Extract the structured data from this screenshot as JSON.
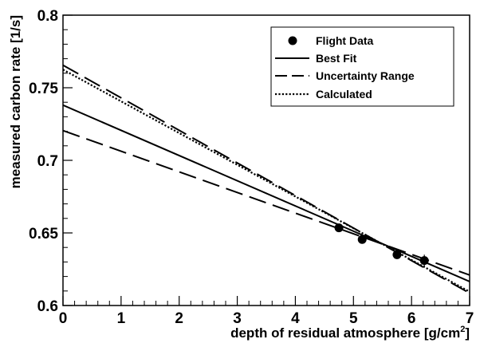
{
  "chart_data": {
    "type": "scatter",
    "xlabel": "depth of residual atmosphere [g/cm",
    "xlabel_sup": "2",
    "xlabel_end": "]",
    "ylabel": "measured carbon rate [1/s]",
    "xlim": [
      0,
      7
    ],
    "ylim": [
      0.6,
      0.8
    ],
    "x_ticks": [
      0,
      1,
      2,
      3,
      4,
      5,
      6,
      7
    ],
    "x_tick_labels": [
      "0",
      "1",
      "2",
      "3",
      "4",
      "5",
      "6",
      "7"
    ],
    "y_ticks": [
      0.6,
      0.65,
      0.7,
      0.75,
      0.8
    ],
    "y_tick_labels": [
      "0.6",
      "0.65",
      "0.7",
      "0.75",
      "0.8"
    ],
    "grid": false,
    "legend_position": "top-right",
    "points": {
      "name": "Flight Data",
      "x": [
        4.75,
        5.15,
        5.75,
        6.22
      ],
      "y": [
        0.6535,
        0.6455,
        0.635,
        0.631
      ],
      "yerr": [
        0.0015,
        0.0015,
        0.003,
        0.004
      ]
    },
    "lines": [
      {
        "name": "Best Fit",
        "style": "solid",
        "x": [
          0,
          7
        ],
        "y": [
          0.738,
          0.6165
        ]
      },
      {
        "name": "Uncertainty Range",
        "style": "long-dash",
        "x": [
          0,
          7
        ],
        "y": [
          0.7205,
          0.621
        ]
      },
      {
        "name": "Uncertainty Range",
        "style": "long-dash",
        "x": [
          0,
          7
        ],
        "y": [
          0.7655,
          0.6085
        ]
      },
      {
        "name": "Calculated",
        "style": "dotted",
        "x": [
          0,
          7
        ],
        "y": [
          0.7625,
          0.6095
        ]
      }
    ],
    "legend": [
      {
        "label": "Flight Data",
        "marker": "circle"
      },
      {
        "label": "Best Fit",
        "line": "solid"
      },
      {
        "label": "Uncertainty Range",
        "line": "long-dash"
      },
      {
        "label": "Calculated",
        "line": "dotted"
      }
    ]
  }
}
